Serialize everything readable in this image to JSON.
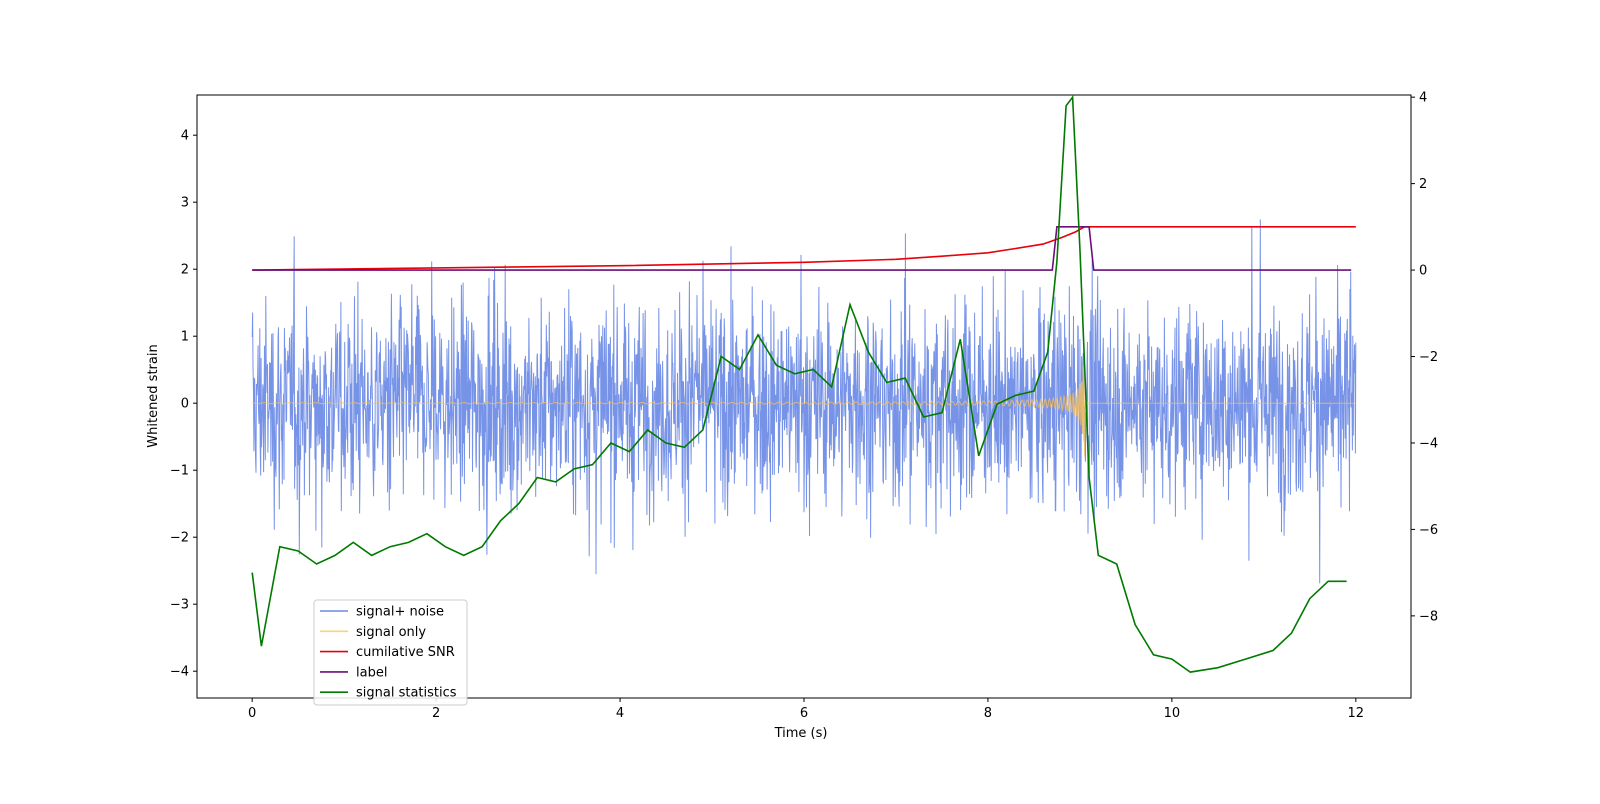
{
  "chart_data": {
    "type": "line",
    "title": "",
    "xlabel": "Time (s)",
    "ylabel": "Whitened strain",
    "y2label": "",
    "xlim": [
      -0.6,
      12.6
    ],
    "ylim": [
      -4.4,
      4.6
    ],
    "y2lim": [
      -9.9,
      4.05
    ],
    "xticks": [
      "0",
      "2",
      "4",
      "6",
      "8",
      "10",
      "12"
    ],
    "xtick_values": [
      0,
      2,
      4,
      6,
      8,
      10,
      12
    ],
    "yticks": [
      "−4",
      "−3",
      "−2",
      "−1",
      "0",
      "1",
      "2",
      "3",
      "4"
    ],
    "ytick_values": [
      -4,
      -3,
      -2,
      -1,
      0,
      1,
      2,
      3,
      4
    ],
    "y2ticks": [
      "−8",
      "−6",
      "−4",
      "−2",
      "0",
      "2",
      "4"
    ],
    "y2tick_values": [
      -8,
      -6,
      -4,
      -2,
      0,
      2,
      4
    ],
    "grid": false,
    "legend_position": "lower-left",
    "series": [
      {
        "name": "signal+ noise",
        "axis": "left",
        "color": "#6b8ae6",
        "kind": "noise",
        "typical_range": [
          -2.5,
          2.5
        ],
        "peak_range": [
          -4.0,
          4.2
        ],
        "t_range": [
          0,
          12
        ]
      },
      {
        "name": "signal only",
        "axis": "left",
        "color": "#ffc04d",
        "kind": "chirp",
        "t_range": [
          0,
          12
        ],
        "merger_time": 9.05,
        "peak_amplitude": 2.0
      },
      {
        "name": "cumilative SNR",
        "axis": "right",
        "color": "#e8000b",
        "x": [
          0,
          2,
          4,
          6,
          7,
          7.5,
          8,
          8.3,
          8.6,
          8.8,
          8.95,
          9.05,
          9.1,
          12
        ],
        "y": [
          0,
          0.05,
          0.1,
          0.18,
          0.25,
          0.32,
          0.4,
          0.5,
          0.6,
          0.75,
          0.88,
          1.0,
          1.0,
          1.0
        ]
      },
      {
        "name": "label",
        "axis": "right",
        "color": "#6b0f7a",
        "x": [
          0,
          8.7,
          8.75,
          9.1,
          9.15,
          11.95
        ],
        "y": [
          0,
          0,
          1,
          1,
          0,
          0
        ]
      },
      {
        "name": "signal statistics",
        "axis": "right",
        "color": "#007a00",
        "x": [
          0,
          0.1,
          0.3,
          0.5,
          0.7,
          0.9,
          1.1,
          1.3,
          1.5,
          1.7,
          1.9,
          2.1,
          2.3,
          2.5,
          2.7,
          2.9,
          3.1,
          3.3,
          3.5,
          3.7,
          3.9,
          4.1,
          4.3,
          4.5,
          4.7,
          4.9,
          5.1,
          5.3,
          5.5,
          5.7,
          5.9,
          6.1,
          6.3,
          6.5,
          6.7,
          6.9,
          7.1,
          7.3,
          7.5,
          7.7,
          7.9,
          8.1,
          8.3,
          8.5,
          8.65,
          8.75,
          8.85,
          8.92,
          9.0,
          9.1,
          9.2,
          9.4,
          9.6,
          9.8,
          10.0,
          10.2,
          10.5,
          10.8,
          11.1,
          11.3,
          11.5,
          11.7,
          11.9
        ],
        "y": [
          -7.0,
          -8.7,
          -6.4,
          -6.5,
          -6.8,
          -6.6,
          -6.3,
          -6.6,
          -6.4,
          -6.3,
          -6.1,
          -6.4,
          -6.6,
          -6.4,
          -5.8,
          -5.4,
          -4.8,
          -4.9,
          -4.6,
          -4.5,
          -4.0,
          -4.2,
          -3.7,
          -4.0,
          -4.1,
          -3.7,
          -2.0,
          -2.3,
          -1.5,
          -2.2,
          -2.4,
          -2.3,
          -2.7,
          -0.8,
          -1.9,
          -2.6,
          -2.5,
          -3.4,
          -3.3,
          -1.6,
          -4.3,
          -3.1,
          -2.9,
          -2.8,
          -1.9,
          0.2,
          3.8,
          4.0,
          0.5,
          -4.8,
          -6.6,
          -6.8,
          -8.2,
          -8.9,
          -9.0,
          -9.3,
          -9.2,
          -9.0,
          -8.8,
          -8.4,
          -7.6,
          -7.2,
          -7.2
        ]
      }
    ]
  }
}
